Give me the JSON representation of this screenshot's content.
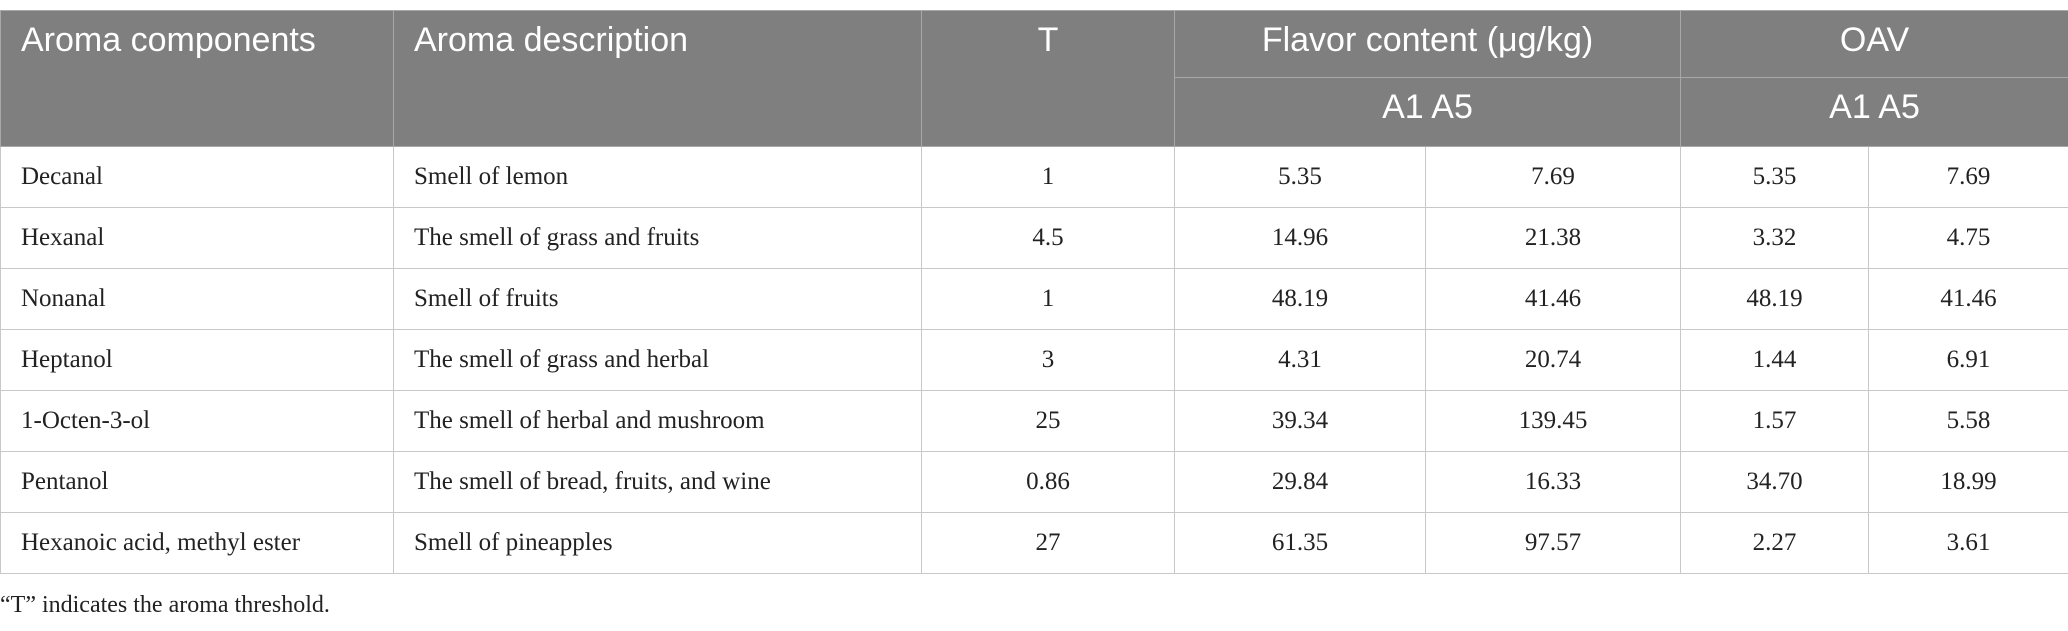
{
  "table": {
    "header": [
      "Aroma components",
      "Aroma description",
      "T",
      "Flavor content (μg/kg)",
      "OAV"
    ],
    "subheader": [
      "A1 A5",
      "A1 A5"
    ],
    "rows": [
      [
        "Decanal",
        "Smell of lemon",
        "1",
        "5.35",
        "7.69",
        "5.35",
        "7.69"
      ],
      [
        "Hexanal",
        "The smell of grass and fruits",
        "4.5",
        "14.96",
        "21.38",
        "3.32",
        "4.75"
      ],
      [
        "Nonanal",
        "Smell of fruits",
        "1",
        "48.19",
        "41.46",
        "48.19",
        "41.46"
      ],
      [
        "Heptanol",
        "The smell of grass and herbal",
        "3",
        "4.31",
        "20.74",
        "1.44",
        "6.91"
      ],
      [
        "1-Octen-3-ol",
        "The smell of herbal and mushroom",
        "25",
        "39.34",
        "139.45",
        "1.57",
        "5.58"
      ],
      [
        "Pentanol",
        "The smell of bread, fruits, and wine",
        "0.86",
        "29.84",
        "16.33",
        "34.70",
        "18.99"
      ],
      [
        "Hexanoic acid, methyl ester",
        "Smell of pineapples",
        "27",
        "61.35",
        "97.57",
        "2.27",
        "3.61"
      ]
    ],
    "footnote": "“T” indicates the aroma threshold."
  }
}
